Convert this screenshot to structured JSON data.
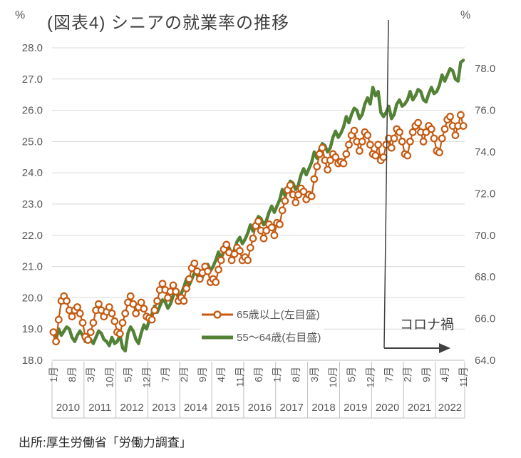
{
  "title": "(図表4) シニアの就業率の推移",
  "axes": {
    "left_unit": "%",
    "right_unit": "%"
  },
  "annotation": {
    "label": "コロナ禍",
    "line_color": "#404040"
  },
  "source": "出所:厚生労働省「労働力調査」",
  "colors": {
    "grid": "#D9D9D9",
    "axis_border": "#BFBFBF",
    "tick_text": "#595959",
    "title_text": "#404040",
    "series_65plus": "#C55A11",
    "series_55_64": "#538135"
  },
  "chart_data": {
    "type": "line",
    "title": "(図表4) シニアの就業率の推移",
    "x_start": "2010-01",
    "x_end": "2022-11",
    "n_points": 155,
    "x_tick_every_months": 7,
    "x_tick_labels": [
      "1月",
      "8月",
      "3月",
      "10月",
      "5月",
      "12月",
      "7月",
      "2月",
      "9月",
      "4月",
      "11月",
      "6月",
      "1月",
      "8月",
      "3月",
      "10月",
      "5月",
      "12月",
      "7月",
      "2月",
      "9月",
      "4月",
      "11月"
    ],
    "year_labels": [
      "2010",
      "2011",
      "2012",
      "2013",
      "2014",
      "2015",
      "2016",
      "2017",
      "2018",
      "2019",
      "2020",
      "2021",
      "2022"
    ],
    "left_axis": {
      "unit": "%",
      "min": 18.0,
      "max": 28.0,
      "step": 1.0,
      "tick_labels": [
        "28.0",
        "27.0",
        "26.0",
        "25.0",
        "24.0",
        "23.0",
        "22.0",
        "21.0",
        "20.0",
        "19.0",
        "18.0"
      ]
    },
    "right_axis": {
      "unit": "%",
      "min": 64.0,
      "max": 79.0,
      "label_step": 2.0,
      "tick_labels": [
        "78.0",
        "76.0",
        "74.0",
        "72.0",
        "70.0",
        "68.0",
        "66.0",
        "64.0"
      ]
    },
    "grid": true,
    "legend_position": "inside-bottom-center",
    "series": [
      {
        "name": "65歳以上(左目盛)",
        "axis": "left",
        "color": "#C55A11",
        "marker": "open-circle",
        "values": [
          18.9,
          18.6,
          19.3,
          19.9,
          20.05,
          19.9,
          19.6,
          19.4,
          19.6,
          19.7,
          19.5,
          19.2,
          18.75,
          18.65,
          18.9,
          19.2,
          19.6,
          19.8,
          19.6,
          19.4,
          19.55,
          19.7,
          19.5,
          19.25,
          18.9,
          18.85,
          19.2,
          19.5,
          19.85,
          20.05,
          19.8,
          19.5,
          19.7,
          19.85,
          19.65,
          19.4,
          19.35,
          19.3,
          19.6,
          19.9,
          20.25,
          20.45,
          20.25,
          20.0,
          20.2,
          20.4,
          20.2,
          19.9,
          20.0,
          19.9,
          20.3,
          20.6,
          20.95,
          21.1,
          20.85,
          20.6,
          20.8,
          21.0,
          20.85,
          20.5,
          20.6,
          20.5,
          20.9,
          21.2,
          21.55,
          21.7,
          21.45,
          21.2,
          21.4,
          21.6,
          21.5,
          21.2,
          21.3,
          21.2,
          21.6,
          21.9,
          22.3,
          22.45,
          22.15,
          21.9,
          22.15,
          22.35,
          22.25,
          22.0,
          22.4,
          22.35,
          22.8,
          23.1,
          23.45,
          23.6,
          23.3,
          23.05,
          23.3,
          23.5,
          23.4,
          23.15,
          23.3,
          23.25,
          23.8,
          24.2,
          24.6,
          24.8,
          24.4,
          24.1,
          24.4,
          24.6,
          24.5,
          24.3,
          24.35,
          24.3,
          24.6,
          24.9,
          25.2,
          25.35,
          25.0,
          24.7,
          25.0,
          25.3,
          25.2,
          24.9,
          24.6,
          24.55,
          24.9,
          24.4,
          24.5,
          24.9,
          25.1,
          24.8,
          25.1,
          25.4,
          25.3,
          25.0,
          24.6,
          24.55,
          25.0,
          25.3,
          25.5,
          25.6,
          25.3,
          25.0,
          25.3,
          25.5,
          25.4,
          25.1,
          24.7,
          24.65,
          25.1,
          25.4,
          25.7,
          25.8,
          25.5,
          25.2,
          25.5,
          25.85,
          25.5
        ]
      },
      {
        "name": "55〜64歳(右目盛)",
        "axis": "right",
        "color": "#538135",
        "marker": "none",
        "values": [
          65.3,
          65.0,
          65.5,
          65.2,
          65.4,
          65.6,
          65.5,
          65.1,
          64.9,
          65.2,
          65.4,
          65.2,
          64.9,
          65.1,
          65.0,
          64.8,
          65.1,
          65.4,
          65.3,
          65.0,
          64.9,
          64.7,
          65.1,
          64.8,
          64.9,
          65.2,
          64.6,
          64.45,
          65.3,
          65.6,
          65.4,
          65.0,
          64.8,
          65.3,
          65.7,
          65.5,
          65.9,
          66.2,
          66.6,
          66.3,
          66.6,
          66.9,
          66.8,
          66.5,
          66.7,
          67.1,
          67.3,
          67.0,
          67.2,
          67.5,
          67.9,
          67.6,
          67.9,
          68.2,
          68.1,
          67.8,
          68.0,
          68.4,
          68.6,
          68.3,
          68.5,
          68.8,
          69.2,
          68.9,
          69.2,
          69.5,
          69.4,
          69.1,
          69.3,
          69.7,
          69.9,
          69.6,
          69.8,
          70.1,
          70.5,
          70.2,
          70.6,
          70.9,
          70.8,
          70.5,
          70.7,
          71.1,
          71.4,
          71.1,
          71.4,
          71.7,
          72.2,
          71.9,
          72.3,
          72.6,
          72.5,
          72.2,
          72.4,
          72.9,
          73.2,
          72.9,
          73.2,
          73.5,
          74.0,
          73.7,
          74.1,
          74.4,
          74.3,
          74.0,
          74.2,
          74.7,
          75.0,
          74.7,
          74.9,
          75.2,
          75.7,
          75.4,
          75.8,
          76.1,
          76.0,
          75.6,
          75.8,
          76.3,
          76.6,
          76.3,
          77.1,
          76.7,
          76.9,
          75.9,
          75.7,
          75.9,
          76.2,
          75.6,
          75.8,
          76.3,
          76.5,
          76.2,
          76.3,
          76.5,
          76.9,
          76.5,
          76.7,
          77.0,
          76.9,
          76.5,
          76.4,
          76.8,
          77.1,
          76.8,
          76.9,
          77.2,
          77.7,
          77.4,
          77.7,
          78.0,
          77.9,
          77.5,
          77.4,
          78.3,
          78.4
        ]
      }
    ],
    "annotation": {
      "label": "コロナ禍",
      "x_month": "2020-05",
      "arrow": "right"
    }
  }
}
